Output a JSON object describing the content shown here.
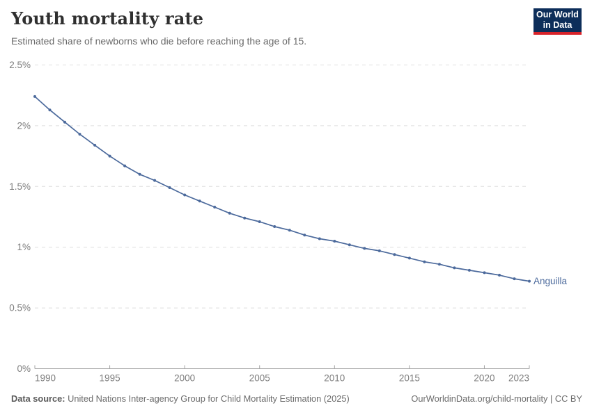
{
  "header": {
    "title": "Youth mortality rate",
    "subtitle": "Estimated share of newborns who die before reaching the age of 15."
  },
  "logo": {
    "line1": "Our World",
    "line2": "in Data",
    "bg_color": "#0d2e5a",
    "accent_color": "#d8232a"
  },
  "footer": {
    "datasource_label": "Data source:",
    "datasource_text": " United Nations Inter-agency Group for Child Mortality Estimation (2025)",
    "link_text": "OurWorldinData.org/child-mortality | CC BY"
  },
  "chart_data": {
    "type": "line",
    "title": "Youth mortality rate",
    "subtitle": "Estimated share of newborns who die before reaching the age of 15.",
    "xlabel": "",
    "ylabel": "",
    "xlim": [
      1990,
      2023
    ],
    "ylim": [
      0,
      2.5
    ],
    "grid": "horizontal-dashed",
    "legend_position": "end-of-line-label",
    "xticks": [
      1990,
      1995,
      2000,
      2005,
      2010,
      2015,
      2020,
      2023
    ],
    "xtick_labels": [
      "1990",
      "1995",
      "2000",
      "2005",
      "2010",
      "2015",
      "2020",
      "2023"
    ],
    "yticks": [
      0,
      0.5,
      1,
      1.5,
      2,
      2.5
    ],
    "ytick_labels": [
      "0%",
      "0.5%",
      "1%",
      "1.5%",
      "2%",
      "2.5%"
    ],
    "x": [
      1990,
      1991,
      1992,
      1993,
      1994,
      1995,
      1996,
      1997,
      1998,
      1999,
      2000,
      2001,
      2002,
      2003,
      2004,
      2005,
      2006,
      2007,
      2008,
      2009,
      2010,
      2011,
      2012,
      2013,
      2014,
      2015,
      2016,
      2017,
      2018,
      2019,
      2020,
      2021,
      2022,
      2023
    ],
    "series": [
      {
        "name": "Anguilla",
        "color": "#4C6A9C",
        "values": [
          2.24,
          2.13,
          2.03,
          1.93,
          1.84,
          1.75,
          1.67,
          1.6,
          1.55,
          1.49,
          1.43,
          1.38,
          1.33,
          1.28,
          1.24,
          1.21,
          1.17,
          1.14,
          1.1,
          1.07,
          1.05,
          1.02,
          0.99,
          0.97,
          0.94,
          0.91,
          0.88,
          0.86,
          0.83,
          0.81,
          0.79,
          0.77,
          0.74,
          0.72
        ]
      }
    ],
    "colors": {
      "gridline": "#dedede",
      "axis": "#a3a3a3",
      "tick_label": "#7d7d7d",
      "series_label": "#4C6A9C"
    }
  }
}
